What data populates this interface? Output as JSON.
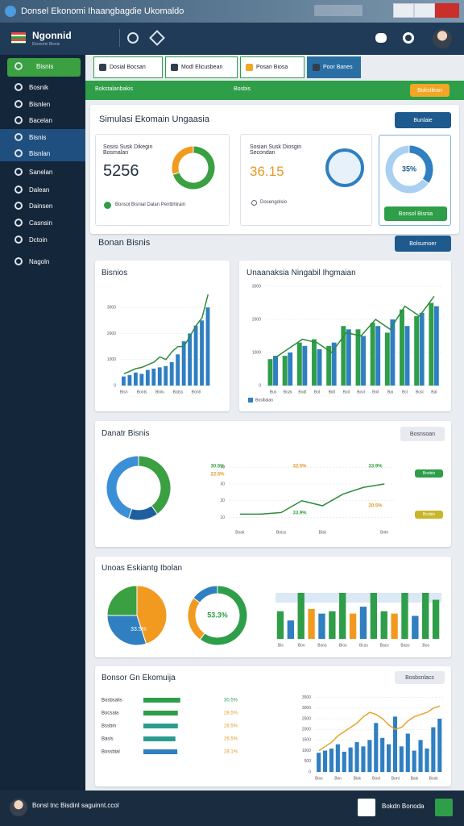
{
  "window": {
    "title": "Donsel Ekonomi Ihaangbagdie Ukomaldo"
  },
  "header": {
    "logo": "Ngonnid",
    "logo_sub": "Ekonomi Bisnis"
  },
  "sidebar": {
    "items": [
      "Bisnis",
      "Bosnik",
      "Bisnlen",
      "Bacelan",
      "Bisnis",
      "Bisnlan",
      "Sanelan",
      "Dalean",
      "Dainsen",
      "Casnsin",
      "Dctoin",
      "Nagoln"
    ]
  },
  "tabs": [
    "Dosial Bocsan",
    "Modl Elicusbean",
    "Posan Biosa",
    "Poor Banes"
  ],
  "banner": {
    "left": "Bokstalanbakis",
    "middle": "Bosbis",
    "button": "Bokstlean"
  },
  "simulation": {
    "title": "Simulasi Ekomain Ungaasia",
    "button": "Bunlaie",
    "card1": {
      "label": "Sosisi Susk Dikegin Bosmalan",
      "value": "5256",
      "note": "Bonsol Bisnial Dalan Pentbhirain"
    },
    "card2": {
      "label": "Sosian Susk Diosgin Secondan",
      "value": "36.15",
      "note": "Dosengolsio"
    },
    "card3": {
      "button": "Bonsol Bisnia"
    }
  },
  "section2": {
    "title": "Bonan Bisnis",
    "button": "Bolsumoer",
    "chart1_title": "Bisnios",
    "chart2_title": "Unaanaksia Ningabil Ihgmaian"
  },
  "section3": {
    "title": "Danatr Bisnis",
    "button": "Bosnsoan",
    "tags": [
      "Bosbin",
      "Bosbin"
    ]
  },
  "section4": {
    "title": "Unoas Eskiantg Ibolan"
  },
  "section5": {
    "title": "Bonsor Gn Ekomuija",
    "button": "Bosbsnlacs"
  },
  "footer": {
    "text": "Bonsl tnc Bisdinl saguinnt.ccol",
    "button": "Bokdn Bonoda"
  },
  "chart_data": [
    {
      "type": "pie",
      "donut": true,
      "values": [
        70,
        30
      ],
      "colors": [
        "#3aa041",
        "#f29a1f"
      ]
    },
    {
      "type": "pie",
      "donut": true,
      "values": [
        35,
        65
      ],
      "colors": [
        "#2f7fc1",
        "#a9d0f0"
      ],
      "center_label": "35%"
    },
    {
      "type": "bar",
      "categories": [
        "Bisn",
        null,
        null,
        "Bonts",
        null,
        null,
        "Binlu",
        null,
        null,
        "Batss",
        null,
        null,
        "Bontl",
        null,
        null
      ],
      "ylim": [
        0,
        3500
      ],
      "yticks": [
        0,
        1000,
        2000,
        3000
      ],
      "grid": true,
      "series": [
        {
          "type": "bar",
          "color": "#2f7fc1",
          "values": [
            350,
            400,
            500,
            450,
            600,
            650,
            700,
            750,
            900,
            1200,
            1700,
            2000,
            2300,
            2500,
            3000
          ]
        },
        {
          "type": "line",
          "color": "#2e8b3e",
          "values": [
            450,
            550,
            650,
            700,
            800,
            900,
            1100,
            1000,
            1300,
            1500,
            1500,
            1900,
            2300,
            2600,
            3500
          ]
        }
      ]
    },
    {
      "type": "bar",
      "categories": [
        "Bus",
        "Bozk",
        "Bodl",
        "Bot",
        "Bidl",
        "Bod",
        "Bovl",
        "Boil",
        "Bai",
        "Bcl",
        "Bosl",
        "Bal"
      ],
      "ylim": [
        0,
        3000
      ],
      "yticks": [
        0,
        1000,
        2000,
        3000
      ],
      "grid": true,
      "series": [
        {
          "type": "bar",
          "color": "#2e9e48",
          "values": [
            800,
            900,
            1300,
            1400,
            1200,
            1800,
            1700,
            1900,
            1600,
            2300,
            2100,
            2500
          ]
        },
        {
          "type": "bar",
          "name": "Boslbalan",
          "color": "#2f7fc1",
          "values": [
            900,
            1000,
            1200,
            1100,
            1300,
            1700,
            1500,
            1800,
            2000,
            1800,
            2200,
            2400
          ]
        },
        {
          "type": "line",
          "color": "#2e8b3e",
          "values": [
            800,
            1100,
            1400,
            1300,
            1000,
            1600,
            1500,
            2000,
            1700,
            2400,
            2100,
            2700
          ]
        }
      ]
    },
    {
      "type": "pie",
      "donut": true,
      "values": [
        40,
        15,
        45
      ],
      "colors": [
        "#3aa041",
        "#1f5fa0",
        "#3b8fd6"
      ]
    },
    {
      "type": "line",
      "categories": [
        "Bosk",
        null,
        "Boiss",
        null,
        "Bisk",
        null,
        null,
        "Bnle"
      ],
      "values": [
        12,
        12,
        13,
        20,
        17,
        24,
        28,
        30
      ],
      "color": "#2e8b3e",
      "ylim": [
        5,
        42
      ],
      "yticks": [
        10,
        20,
        30,
        40
      ],
      "grid": true,
      "annotations": [
        {
          "text": "30.5%",
          "color": "#3aa041"
        },
        {
          "text": "32.5%",
          "color": "#e69a2a"
        },
        {
          "text": "33.9%",
          "color": "#3aa041"
        },
        {
          "text": "22.5%",
          "color": "#e69a2a"
        },
        {
          "text": "33.9%",
          "color": "#3aa041"
        },
        {
          "text": "20.5%",
          "color": "#e69a2a"
        }
      ]
    },
    {
      "type": "pie",
      "values": [
        45,
        30,
        25
      ],
      "colors": [
        "#f29a1f",
        "#2f7fc1",
        "#3aa041"
      ],
      "annotations": [
        {
          "text": "33.5%",
          "color": "#ffffff"
        }
      ]
    },
    {
      "type": "pie",
      "donut": true,
      "values": [
        60,
        25,
        15
      ],
      "colors": [
        "#2e9e48",
        "#f29a1f",
        "#2f7fc1"
      ],
      "center_label": "53.3%"
    },
    {
      "type": "bar",
      "categories": [
        "Bis",
        null,
        "Bov",
        null,
        "Bons",
        null,
        "Bios",
        null,
        "Bcss",
        null,
        "Bacs",
        null,
        "Bass",
        null,
        "Bos",
        null
      ],
      "ylim": [
        0,
        100
      ],
      "values": [
        60,
        40,
        100,
        65,
        55,
        60,
        100,
        55,
        70,
        100,
        60,
        55,
        100,
        50,
        100,
        85
      ],
      "colors": [
        "#2e9e48",
        "#2f7fc1",
        "#2e9e48",
        "#f29a1f",
        "#2f7fc1",
        "#2e9e48",
        "#2e9e48",
        "#f29a1f",
        "#2f7fc1",
        "#2e9e48",
        "#2e9e48",
        "#f29a1f",
        "#2e9e48",
        "#2f7fc1",
        "#2e9e48",
        "#2e9e48"
      ]
    },
    {
      "type": "hbar",
      "categories": [
        "Bosbsalis",
        "Bocsaia",
        "Bssbin",
        "Basls",
        "Bossbial"
      ],
      "values": [
        30.5,
        28.5,
        28.5,
        26.5,
        28.1
      ],
      "value_labels": [
        "30.5%",
        "28.5%",
        "28.5%",
        "26.5%",
        "28.1%"
      ],
      "xlim": [
        0,
        40
      ],
      "colors": [
        "#2e9e48",
        "#2e9e48",
        "#2a9d8f",
        "#2a9d8f",
        "#2f7fc1"
      ],
      "value_label_colors": [
        "#2e9e48",
        "#e69a2a",
        "#e69a2a",
        "#e69a2a",
        "#e69a2a"
      ]
    },
    {
      "type": "bar",
      "categories": [
        "Bios",
        null,
        null,
        "Bon",
        null,
        null,
        "Bisk",
        null,
        null,
        "Bosl",
        null,
        null,
        "Bonl",
        null,
        null,
        "Bals",
        null,
        null,
        "Bosk",
        null
      ],
      "ylim": [
        0,
        3600
      ],
      "yticks": [
        0,
        500,
        1000,
        1500,
        2000,
        2500,
        3000,
        3500
      ],
      "grid": true,
      "series": [
        {
          "type": "bar",
          "color": "#2f7fc1",
          "values": [
            900,
            1000,
            1100,
            1300,
            950,
            1150,
            1400,
            1200,
            1500,
            2300,
            1600,
            1300,
            2600,
            1200,
            1800,
            1000,
            1500,
            1100,
            2100,
            2500
          ]
        },
        {
          "type": "line",
          "color": "#e6a52a",
          "values": [
            1000,
            1200,
            1400,
            1700,
            1900,
            2100,
            2300,
            2600,
            2800,
            2700,
            2500,
            2200,
            2000,
            2100,
            2400,
            2600,
            2700,
            2800,
            3000,
            3100
          ]
        }
      ]
    }
  ]
}
